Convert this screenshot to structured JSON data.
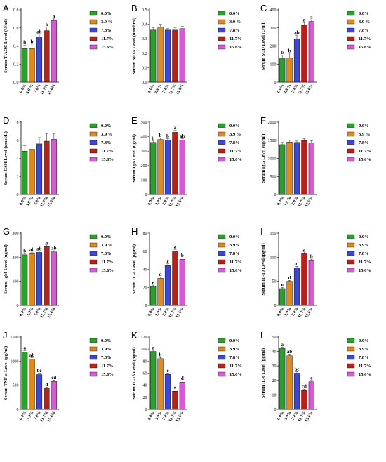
{
  "legend_colors": [
    "#2aa12a",
    "#e08a1e",
    "#3d46d6",
    "#b5221c",
    "#d65ad6"
  ],
  "chart_data": [
    {
      "type": "bar",
      "panel": "A",
      "ylabel": "Serum T-AOC Level (U/ml)",
      "categories": [
        "0.0%",
        "3.9 %",
        "7.8%",
        "11.7%",
        "15.6%"
      ],
      "legend": [
        "0.0%",
        "3.9 %",
        "7.8%",
        "11.7%",
        "15.6%"
      ],
      "ylim": [
        0,
        0.8
      ],
      "yticks": [
        "0.0",
        "0.2",
        "0.4",
        "0.6",
        "0.8"
      ],
      "values": [
        0.37,
        0.37,
        0.5,
        0.57,
        0.68
      ],
      "errors": [
        0.04,
        0.05,
        0.03,
        0.04,
        0.02
      ],
      "letters": [
        "b",
        "b",
        "ab",
        "a",
        "a"
      ]
    },
    {
      "type": "bar",
      "panel": "B",
      "ylabel": "Serum MDA Level (nmol/ml)",
      "categories": [
        "0.0%",
        "3.9 %",
        "7.8%",
        "11.7%",
        "15.6%"
      ],
      "legend": [
        "0.0%",
        "3.9 %",
        "7.8%",
        "11.7%",
        "15.6%"
      ],
      "ylim": [
        0,
        0.5
      ],
      "yticks": [
        "0.0",
        "0.1",
        "0.2",
        "0.3",
        "0.4",
        "0.5"
      ],
      "values": [
        0.36,
        0.38,
        0.36,
        0.36,
        0.37
      ],
      "errors": [
        0.015,
        0.02,
        0.01,
        0.015,
        0.015
      ],
      "letters": [
        "",
        "",
        "",
        "",
        ""
      ]
    },
    {
      "type": "bar",
      "panel": "C",
      "ylabel": "Serum SOD Level (U/ml)",
      "categories": [
        "0.0%",
        "3.9 %",
        "7.8%",
        "11.7%",
        "15.6%"
      ],
      "legend": [
        "0.0%",
        "3.9 %",
        "7.8%",
        "11.7%",
        "15.6%"
      ],
      "ylim": [
        0,
        400
      ],
      "yticks": [
        "0",
        "100",
        "200",
        "300",
        "400"
      ],
      "values": [
        130,
        135,
        240,
        315,
        335
      ],
      "errors": [
        20,
        25,
        20,
        15,
        10
      ],
      "letters": [
        "b",
        "b",
        "ab",
        "a",
        "a"
      ]
    },
    {
      "type": "bar",
      "panel": "D",
      "ylabel": "Serum GSH Level (umol/L)",
      "categories": [
        "0.0%",
        "3.9 %",
        "7.8%",
        "11.7%",
        "15.6%"
      ],
      "legend": [
        "0.0%",
        "3.9 %",
        "7.8%",
        "11.7%",
        "15.6%"
      ],
      "ylim": [
        0,
        8
      ],
      "yticks": [
        "0",
        "2",
        "4",
        "6",
        "8"
      ],
      "values": [
        4.8,
        5.0,
        5.6,
        5.9,
        6.1
      ],
      "errors": [
        0.6,
        0.5,
        0.7,
        0.8,
        0.6
      ],
      "letters": [
        "",
        "",
        "",
        "",
        ""
      ]
    },
    {
      "type": "bar",
      "panel": "E",
      "ylabel": "Serum IgA Level (ug/ml)",
      "categories": [
        "0.0%",
        "3.9%",
        "7.8%",
        "11.7%",
        "15.6%"
      ],
      "legend": [
        "0.0%",
        "3.9 %",
        "7.8%",
        "11.7%",
        "15.6%"
      ],
      "ylim": [
        0,
        500
      ],
      "yticks": [
        "0",
        "100",
        "200",
        "300",
        "400",
        "500"
      ],
      "values": [
        360,
        380,
        375,
        430,
        375
      ],
      "errors": [
        10,
        10,
        10,
        15,
        10
      ],
      "letters": [
        "b",
        "b",
        "b",
        "a",
        "ab"
      ]
    },
    {
      "type": "bar",
      "panel": "F",
      "ylabel": "Serum IgG Level (ug/ml)",
      "categories": [
        "0.0%",
        "3.9 %",
        "7.8%",
        "11.7%",
        "15.6%"
      ],
      "legend": [
        "0.0%",
        "3.9 %",
        "7.8%",
        "11.7%",
        "15.6%"
      ],
      "ylim": [
        0,
        2000
      ],
      "yticks": [
        "0",
        "500",
        "1000",
        "1500",
        "2000"
      ],
      "values": [
        1380,
        1450,
        1440,
        1490,
        1430
      ],
      "errors": [
        60,
        50,
        40,
        50,
        60
      ],
      "letters": [
        "",
        "",
        "",
        "",
        ""
      ]
    },
    {
      "type": "bar",
      "panel": "G",
      "ylabel": "Serum IgM Level (ug/ml)",
      "categories": [
        "0.0%",
        "3.9%",
        "7.8%",
        "11.7%",
        "15.6%"
      ],
      "legend": [
        "0.0%",
        "3.9 %",
        "7.8%",
        "11.7%",
        "15.6%"
      ],
      "ylim": [
        0,
        300
      ],
      "yticks": [
        "0",
        "100",
        "200",
        "300"
      ],
      "values": [
        210,
        215,
        220,
        245,
        222
      ],
      "errors": [
        5,
        6,
        5,
        6,
        5
      ],
      "letters": [
        "b",
        "ab",
        "ab",
        "a",
        "ab"
      ]
    },
    {
      "type": "bar",
      "panel": "H",
      "ylabel": "Serum IL-4 Level (pg/ml)",
      "categories": [
        "0.0%",
        "3.9%",
        "7.8%",
        "11.7%",
        "15.6%"
      ],
      "legend": [
        "0.0%",
        "3.9%",
        "7.8%",
        "11.7%",
        "15.6%"
      ],
      "ylim": [
        0,
        80
      ],
      "yticks": [
        "0",
        "20",
        "40",
        "60",
        "80"
      ],
      "values": [
        21,
        30,
        44,
        60,
        51
      ],
      "errors": [
        1.5,
        1.5,
        2,
        2,
        1.5
      ],
      "letters": [
        "e",
        "d",
        "c",
        "a",
        "b"
      ]
    },
    {
      "type": "bar",
      "panel": "I",
      "ylabel": "Serum IL-10 Level (pg/ml)",
      "categories": [
        "0.0%",
        "3.9%",
        "7.8%",
        "11.7%",
        "15.6%"
      ],
      "legend": [
        "0.0%",
        "3.9%",
        "7.8%",
        "11.7%",
        "15.6%"
      ],
      "ylim": [
        0,
        150
      ],
      "yticks": [
        "0",
        "50",
        "100",
        "150"
      ],
      "values": [
        35,
        50,
        78,
        108,
        93
      ],
      "errors": [
        2,
        2,
        3,
        3,
        3
      ],
      "letters": [
        "e",
        "d",
        "c",
        "a",
        "b"
      ]
    },
    {
      "type": "bar",
      "panel": "J",
      "ylabel": "Serum TNF-α Level (pg/ml)",
      "categories": [
        "0.0%",
        "3.9%",
        "7.8%",
        "11.7%",
        "15.6%"
      ],
      "legend": [
        "0.0%",
        "3.9%",
        "7.8%",
        "11.7%",
        "15.6%"
      ],
      "ylim": [
        0,
        1500
      ],
      "yticks": [
        "0",
        "500",
        "1000",
        "1500"
      ],
      "values": [
        1190,
        1040,
        720,
        440,
        580
      ],
      "errors": [
        30,
        30,
        30,
        20,
        25
      ],
      "letters": [
        "a",
        "ab",
        "bc",
        "d",
        "cd"
      ]
    },
    {
      "type": "bar",
      "panel": "K",
      "ylabel": "Serum IL-1β Level (pg/ml)",
      "categories": [
        "0.0%",
        "3.9%",
        "7.8%",
        "11.7%",
        "15.6%"
      ],
      "legend": [
        "0.0%",
        "3.9%",
        "7.8%",
        "11.7%",
        "15.6%"
      ],
      "ylim": [
        0,
        120
      ],
      "yticks": [
        "0",
        "20",
        "40",
        "60",
        "80",
        "100",
        "120"
      ],
      "values": [
        96,
        84,
        58,
        30,
        45
      ],
      "errors": [
        2,
        2,
        2,
        2,
        2
      ],
      "letters": [
        "a",
        "b",
        "c",
        "e",
        "d"
      ]
    },
    {
      "type": "bar",
      "panel": "L",
      "ylabel": "Serum IL-6 Level (pg/ml)",
      "categories": [
        "0.0%",
        "3.9%",
        "7.8%",
        "11.7%",
        "15.6%"
      ],
      "legend": [
        "0.0%",
        "3.9%",
        "7.8%",
        "11.7%",
        "15.6%"
      ],
      "ylim": [
        0,
        50
      ],
      "yticks": [
        "0",
        "10",
        "20",
        "30",
        "40",
        "50"
      ],
      "values": [
        42,
        37,
        25,
        13,
        19
      ],
      "errors": [
        1,
        1,
        1,
        1,
        1
      ],
      "letters": [
        "a",
        "ab",
        "bc",
        "cd",
        "c"
      ]
    }
  ]
}
